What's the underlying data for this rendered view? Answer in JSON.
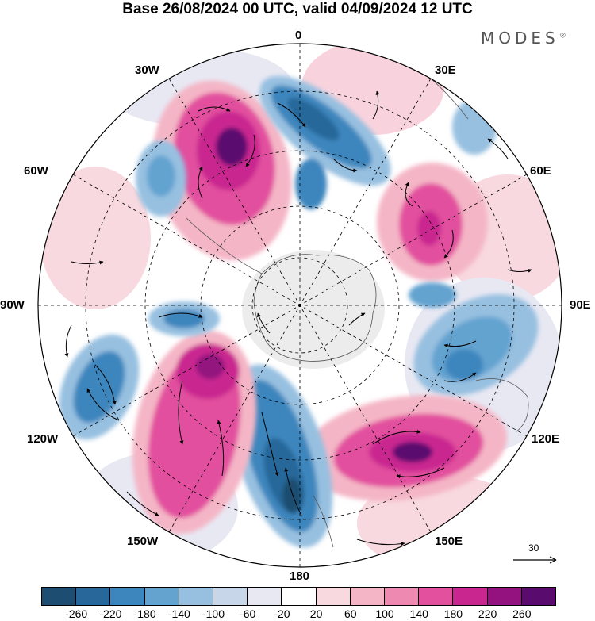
{
  "title": "Base 26/08/2024 00 UTC, valid 04/09/2024 12 UTC",
  "brand": {
    "name": "MODES",
    "mark": "®"
  },
  "longitude_labels": [
    "0",
    "30E",
    "60E",
    "90E",
    "120E",
    "150E",
    "180",
    "150W",
    "120W",
    "90W",
    "60W",
    "30W"
  ],
  "reference_vector": {
    "value": "30"
  },
  "colorbar": {
    "colors": [
      "#1d4d70",
      "#27679a",
      "#3c86bd",
      "#64a3d0",
      "#97c0e0",
      "#c8d6ea",
      "#e8e8f3",
      "#ffffff",
      "#f8d9df",
      "#f4b6c6",
      "#ee89b1",
      "#e2509e",
      "#c92690",
      "#93127f",
      "#5a0b6e"
    ],
    "ticks": [
      "-260",
      "-220",
      "-180",
      "-140",
      "-100",
      "-60",
      "-20",
      "20",
      "60",
      "100",
      "140",
      "180",
      "220",
      "260"
    ]
  },
  "anomaly_regions": [
    {
      "label": "positive anomaly, South Atlantic west",
      "value": 260,
      "color": "#93127f"
    },
    {
      "label": "negative anomaly, South Atlantic",
      "value": -220,
      "color": "#27679a"
    },
    {
      "label": "negative anomaly, 45W",
      "value": -140,
      "color": "#64a3d0"
    },
    {
      "label": "positive anomaly, Indian Ocean 50E",
      "value": 180,
      "color": "#c92690"
    },
    {
      "label": "negative anomaly, Indian Ocean 100E",
      "value": -180,
      "color": "#3c86bd"
    },
    {
      "label": "positive anomaly, south of Australia 135E",
      "value": 260,
      "color": "#93127f"
    },
    {
      "label": "negative anomaly, Ross Sea 170W",
      "value": -260,
      "color": "#1d4d70"
    },
    {
      "label": "positive anomaly, Pacific 130W",
      "value": 220,
      "color": "#93127f"
    },
    {
      "label": "negative anomaly, Pacific 115W",
      "value": -180,
      "color": "#3c86bd"
    },
    {
      "label": "negative anomaly, Bellingshausen 85W",
      "value": -180,
      "color": "#3c86bd"
    }
  ]
}
